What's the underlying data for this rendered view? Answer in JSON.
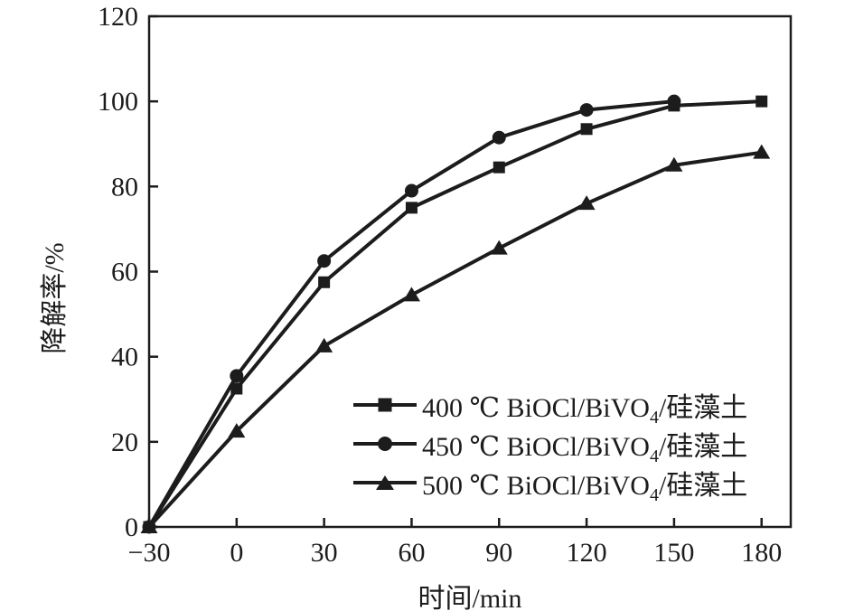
{
  "figure": {
    "background": "#ffffff",
    "ink_color": "#1c1c1c"
  },
  "chart_data": {
    "type": "line",
    "title": "",
    "xlabel": "时间/min",
    "ylabel": "降解率/%",
    "xlim": [
      -30,
      190
    ],
    "ylim": [
      0,
      120
    ],
    "x_ticks": [
      -30,
      0,
      30,
      60,
      90,
      120,
      150,
      180
    ],
    "x_tick_labels": [
      "−30",
      "0",
      "30",
      "60",
      "90",
      "120",
      "150",
      "180"
    ],
    "y_ticks": [
      0,
      20,
      40,
      60,
      80,
      100,
      120
    ],
    "y_tick_labels": [
      "0",
      "20",
      "40",
      "60",
      "80",
      "100",
      "120"
    ],
    "grid": false,
    "frame": true,
    "legend_position": "inside lower right",
    "series": [
      {
        "name": "400 ℃ BiOCl/BiVO4/硅藻土",
        "label_main": "400 ℃ BiOCl/BiVO",
        "label_sub": "4",
        "label_tail": "/硅藻土",
        "marker": "square",
        "color": "#1c1c1c",
        "x": [
          -30,
          0,
          30,
          60,
          90,
          120,
          150,
          180
        ],
        "y": [
          0,
          32.5,
          57.5,
          75,
          84.5,
          93.5,
          99,
          100
        ]
      },
      {
        "name": "450 ℃ BiOCl/BiVO4/硅藻土",
        "label_main": "450 ℃ BiOCl/BiVO",
        "label_sub": "4",
        "label_tail": "/硅藻土",
        "marker": "circle",
        "color": "#1c1c1c",
        "x": [
          -30,
          0,
          30,
          60,
          90,
          120,
          150
        ],
        "y": [
          0,
          35.5,
          62.5,
          79,
          91.5,
          98,
          100
        ]
      },
      {
        "name": "500 ℃ BiOCl/BiVO4/硅藻土",
        "label_main": "500 ℃ BiOCl/BiVO",
        "label_sub": "4",
        "label_tail": "/硅藻土",
        "marker": "triangle",
        "color": "#1c1c1c",
        "x": [
          -30,
          0,
          30,
          60,
          90,
          120,
          150,
          180
        ],
        "y": [
          0,
          22.5,
          42.5,
          54.5,
          65.5,
          76,
          85,
          88
        ]
      }
    ]
  }
}
